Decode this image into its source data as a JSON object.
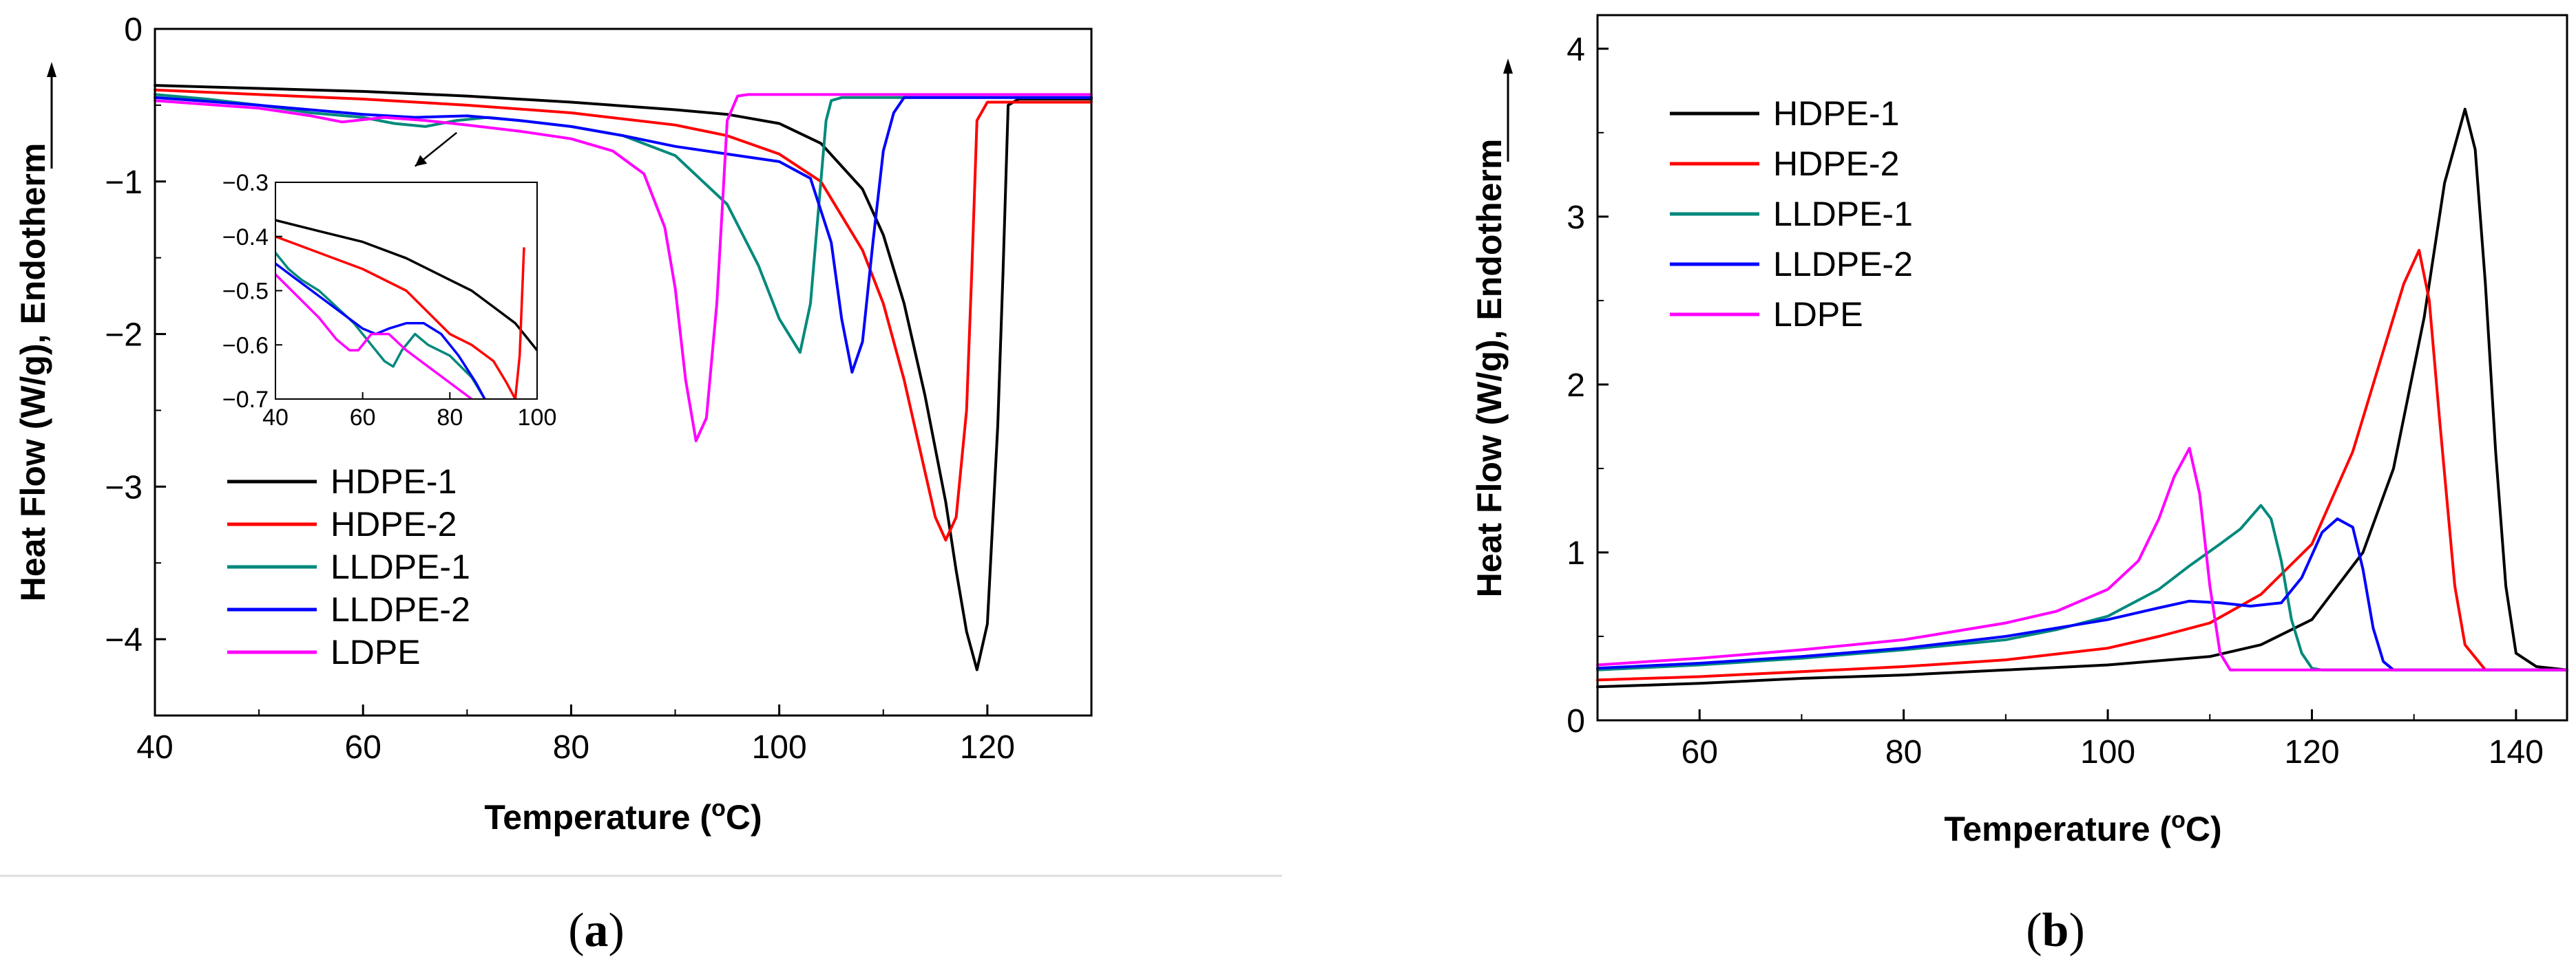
{
  "figure": {
    "panel_a_label": "a",
    "panel_b_label": "b"
  },
  "chart_data": [
    {
      "id": "a",
      "type": "line",
      "title": "",
      "xlabel": "Temperature (oC)",
      "ylabel": "Heat Flow (W/g), Endotherm",
      "xlim": [
        40,
        130
      ],
      "ylim": [
        -4.5,
        0
      ],
      "xticks": [
        40,
        60,
        80,
        100,
        120
      ],
      "yticks": [
        0,
        -1,
        -2,
        -3,
        -4
      ],
      "legend_position": "bottom-left",
      "series": [
        {
          "name": "HDPE-1",
          "color": "#000000",
          "x": [
            40,
            50,
            60,
            70,
            80,
            90,
            95,
            100,
            104,
            108,
            110,
            112,
            114,
            116,
            117,
            118,
            119,
            120,
            121,
            121.5,
            122,
            123,
            130
          ],
          "y": [
            -0.37,
            -0.39,
            -0.41,
            -0.44,
            -0.48,
            -0.53,
            -0.56,
            -0.62,
            -0.75,
            -1.05,
            -1.35,
            -1.8,
            -2.4,
            -3.1,
            -3.55,
            -3.95,
            -4.2,
            -3.9,
            -2.6,
            -1.6,
            -0.5,
            -0.46,
            -0.46
          ]
        },
        {
          "name": "HDPE-2",
          "color": "#ff0000",
          "x": [
            40,
            50,
            60,
            70,
            80,
            90,
            95,
            100,
            104,
            108,
            110,
            112,
            114,
            115,
            116,
            117,
            118,
            118.5,
            119,
            120,
            130
          ],
          "y": [
            -0.4,
            -0.43,
            -0.46,
            -0.5,
            -0.55,
            -0.63,
            -0.7,
            -0.82,
            -1.0,
            -1.45,
            -1.8,
            -2.3,
            -2.9,
            -3.2,
            -3.35,
            -3.2,
            -2.5,
            -1.6,
            -0.6,
            -0.48,
            -0.48
          ]
        },
        {
          "name": "LLDPE-1",
          "color": "#00897b",
          "x": [
            40,
            45,
            50,
            55,
            60,
            63,
            66,
            69,
            72,
            75,
            80,
            85,
            90,
            95,
            98,
            100,
            102,
            103,
            104,
            104.5,
            105,
            106,
            130
          ],
          "y": [
            -0.43,
            -0.46,
            -0.5,
            -0.55,
            -0.58,
            -0.62,
            -0.64,
            -0.6,
            -0.58,
            -0.6,
            -0.64,
            -0.7,
            -0.83,
            -1.15,
            -1.55,
            -1.9,
            -2.12,
            -1.8,
            -1.0,
            -0.6,
            -0.47,
            -0.45,
            -0.45
          ]
        },
        {
          "name": "LLDPE-2",
          "color": "#0000ff",
          "x": [
            40,
            50,
            60,
            65,
            70,
            75,
            80,
            85,
            90,
            95,
            100,
            103,
            105,
            106,
            107,
            108,
            109,
            110,
            111,
            112,
            130
          ],
          "y": [
            -0.45,
            -0.5,
            -0.56,
            -0.58,
            -0.57,
            -0.6,
            -0.64,
            -0.7,
            -0.77,
            -0.82,
            -0.87,
            -0.98,
            -1.4,
            -1.9,
            -2.25,
            -2.05,
            -1.4,
            -0.8,
            -0.55,
            -0.45,
            -0.45
          ]
        },
        {
          "name": "LDPE",
          "color": "#ff00ff",
          "x": [
            40,
            50,
            55,
            58,
            62,
            66,
            70,
            75,
            80,
            84,
            87,
            89,
            90,
            91,
            92,
            93,
            94,
            94.5,
            95,
            96,
            97,
            130
          ],
          "y": [
            -0.47,
            -0.52,
            -0.57,
            -0.61,
            -0.58,
            -0.6,
            -0.63,
            -0.67,
            -0.72,
            -0.8,
            -0.95,
            -1.3,
            -1.7,
            -2.3,
            -2.7,
            -2.55,
            -1.8,
            -1.2,
            -0.6,
            -0.44,
            -0.43,
            -0.43
          ]
        }
      ],
      "annotation": {
        "text": "inset arrow",
        "from": [
          69,
          -0.68
        ],
        "to": [
          65,
          -0.9
        ]
      },
      "inset": {
        "xlim": [
          40,
          100
        ],
        "ylim": [
          -0.7,
          -0.3
        ],
        "xticks": [
          40,
          60,
          80,
          100
        ],
        "yticks": [
          -0.3,
          -0.4,
          -0.5,
          -0.6,
          -0.7
        ],
        "ytick_labels": [
          "-0.3",
          "-0.4",
          "-0.5",
          "-0.6",
          "-0.7"
        ],
        "series": [
          {
            "name": "HDPE-1",
            "color": "#000000",
            "x": [
              40,
              50,
              60,
              70,
              80,
              85,
              90,
              95,
              100
            ],
            "y": [
              -0.37,
              -0.39,
              -0.41,
              -0.44,
              -0.48,
              -0.5,
              -0.53,
              -0.56,
              -0.61
            ]
          },
          {
            "name": "HDPE-2",
            "color": "#ff0000",
            "x": [
              40,
              50,
              60,
              70,
              75,
              80,
              85,
              90,
              93,
              95,
              96,
              97
            ],
            "y": [
              -0.4,
              -0.43,
              -0.46,
              -0.5,
              -0.54,
              -0.58,
              -0.6,
              -0.63,
              -0.67,
              -0.7,
              -0.62,
              -0.42
            ]
          },
          {
            "name": "LLDPE-1",
            "color": "#00897b",
            "x": [
              40,
              43,
              46,
              50,
              54,
              58,
              62,
              65,
              67,
              69,
              72,
              75,
              80,
              85,
              88
            ],
            "y": [
              -0.43,
              -0.46,
              -0.48,
              -0.5,
              -0.53,
              -0.56,
              -0.6,
              -0.63,
              -0.64,
              -0.61,
              -0.58,
              -0.6,
              -0.62,
              -0.66,
              -0.7
            ]
          },
          {
            "name": "LLDPE-2",
            "color": "#0000ff",
            "x": [
              40,
              45,
              50,
              55,
              60,
              63,
              66,
              70,
              74,
              78,
              82,
              86,
              88
            ],
            "y": [
              -0.45,
              -0.48,
              -0.51,
              -0.54,
              -0.57,
              -0.58,
              -0.57,
              -0.56,
              -0.56,
              -0.58,
              -0.62,
              -0.67,
              -0.7
            ]
          },
          {
            "name": "LDPE",
            "color": "#ff00ff",
            "x": [
              40,
              45,
              50,
              54,
              57,
              59,
              62,
              66,
              70,
              75,
              80,
              85
            ],
            "y": [
              -0.47,
              -0.51,
              -0.55,
              -0.59,
              -0.61,
              -0.61,
              -0.58,
              -0.58,
              -0.61,
              -0.64,
              -0.67,
              -0.7
            ]
          }
        ]
      }
    },
    {
      "id": "b",
      "type": "line",
      "title": "",
      "xlabel": "Temperature (oC)",
      "ylabel": "Heat Flow (W/g), Endotherm",
      "xlim": [
        50,
        145
      ],
      "ylim": [
        0,
        4.2
      ],
      "xticks": [
        60,
        80,
        100,
        120,
        140
      ],
      "yticks": [
        0,
        1,
        2,
        3,
        4
      ],
      "legend_position": "top-left",
      "series": [
        {
          "name": "HDPE-1",
          "color": "#000000",
          "x": [
            50,
            60,
            70,
            80,
            90,
            100,
            110,
            115,
            120,
            125,
            128,
            131,
            133,
            135,
            136,
            137,
            138,
            139,
            140,
            142,
            145
          ],
          "y": [
            0.2,
            0.22,
            0.25,
            0.27,
            0.3,
            0.33,
            0.38,
            0.45,
            0.6,
            1.0,
            1.5,
            2.4,
            3.2,
            3.64,
            3.4,
            2.6,
            1.6,
            0.8,
            0.4,
            0.32,
            0.3
          ]
        },
        {
          "name": "HDPE-2",
          "color": "#ff0000",
          "x": [
            50,
            60,
            70,
            80,
            90,
            100,
            105,
            110,
            115,
            120,
            124,
            127,
            129,
            130.5,
            131.5,
            132.5,
            134,
            135,
            137,
            145
          ],
          "y": [
            0.24,
            0.26,
            0.29,
            0.32,
            0.36,
            0.43,
            0.5,
            0.58,
            0.75,
            1.05,
            1.6,
            2.2,
            2.6,
            2.8,
            2.5,
            1.8,
            0.8,
            0.45,
            0.3,
            0.3
          ]
        },
        {
          "name": "LLDPE-1",
          "color": "#00897b",
          "x": [
            50,
            60,
            70,
            80,
            90,
            95,
            100,
            105,
            108,
            111,
            113,
            115,
            116,
            117,
            118,
            119,
            120,
            121,
            145
          ],
          "y": [
            0.3,
            0.33,
            0.37,
            0.42,
            0.48,
            0.54,
            0.62,
            0.78,
            0.92,
            1.05,
            1.14,
            1.28,
            1.2,
            0.95,
            0.6,
            0.4,
            0.31,
            0.3,
            0.3
          ]
        },
        {
          "name": "LLDPE-2",
          "color": "#0000ff",
          "x": [
            50,
            60,
            70,
            80,
            90,
            100,
            105,
            108,
            111,
            114,
            117,
            119,
            121,
            122.5,
            124,
            125,
            126,
            127,
            128,
            145
          ],
          "y": [
            0.31,
            0.34,
            0.38,
            0.43,
            0.5,
            0.6,
            0.67,
            0.71,
            0.7,
            0.68,
            0.7,
            0.85,
            1.12,
            1.2,
            1.15,
            0.9,
            0.55,
            0.35,
            0.3,
            0.3
          ]
        },
        {
          "name": "LDPE",
          "color": "#ff00ff",
          "x": [
            50,
            60,
            70,
            80,
            90,
            95,
            100,
            103,
            105,
            106.5,
            108,
            109,
            110,
            111,
            112,
            145
          ],
          "y": [
            0.33,
            0.37,
            0.42,
            0.48,
            0.58,
            0.65,
            0.78,
            0.95,
            1.2,
            1.45,
            1.62,
            1.35,
            0.8,
            0.4,
            0.3,
            0.3
          ]
        }
      ]
    }
  ]
}
